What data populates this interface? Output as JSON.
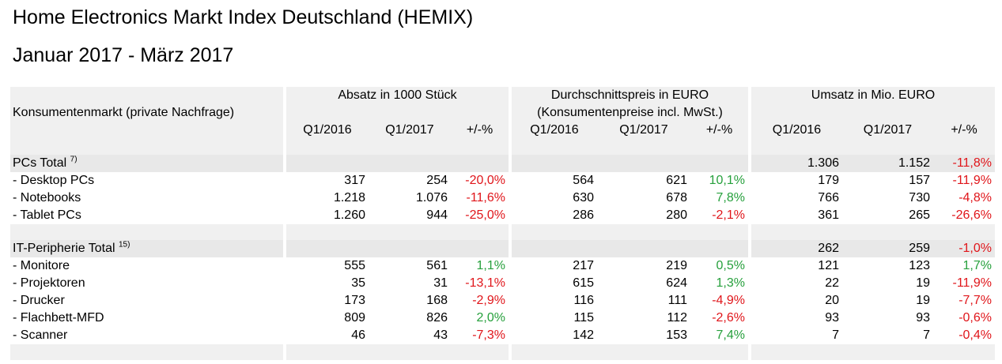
{
  "title": "Home Electronics Markt Index Deutschland (HEMIX)",
  "subtitle": "Januar 2017 - März 2017",
  "header": {
    "group1": "Absatz in 1000 Stück",
    "group2": "Durchschnittspreis in EURO",
    "group2_sub": "(Konsumentenpreise incl. MwSt.)",
    "group3": "Umsatz in Mio. EURO",
    "row_label": "Konsumentenmarkt (private Nachfrage)",
    "col_q1_2016": "Q1/2016",
    "col_q1_2017": "Q1/2017",
    "col_pct": "+/-%"
  },
  "sections": [
    {
      "total": {
        "label": "PCs Total",
        "note": "7)",
        "u16": "1.306",
        "u17": "1.152",
        "upct": "-11,8%",
        "upct_dir": "neg"
      },
      "rows": [
        {
          "label": "- Desktop PCs",
          "a16": "317",
          "a17": "254",
          "apct": "-20,0%",
          "adir": "neg",
          "p16": "564",
          "p17": "621",
          "ppct": "10,1%",
          "pdir": "pos",
          "u16": "179",
          "u17": "157",
          "upct": "-11,9%",
          "udir": "neg"
        },
        {
          "label": "- Notebooks",
          "a16": "1.218",
          "a17": "1.076",
          "apct": "-11,6%",
          "adir": "neg",
          "p16": "630",
          "p17": "678",
          "ppct": "7,8%",
          "pdir": "pos",
          "u16": "766",
          "u17": "730",
          "upct": "-4,8%",
          "udir": "neg"
        },
        {
          "label": "- Tablet PCs",
          "a16": "1.260",
          "a17": "944",
          "apct": "-25,0%",
          "adir": "neg",
          "p16": "286",
          "p17": "280",
          "ppct": "-2,1%",
          "pdir": "neg",
          "u16": "361",
          "u17": "265",
          "upct": "-26,6%",
          "udir": "neg"
        }
      ]
    },
    {
      "total": {
        "label": "IT-Peripherie Total",
        "note": "15)",
        "u16": "262",
        "u17": "259",
        "upct": "-1,0%",
        "upct_dir": "neg"
      },
      "rows": [
        {
          "label": "- Monitore",
          "a16": "555",
          "a17": "561",
          "apct": "1,1%",
          "adir": "pos",
          "p16": "217",
          "p17": "219",
          "ppct": "0,5%",
          "pdir": "pos",
          "u16": "121",
          "u17": "123",
          "upct": "1,7%",
          "udir": "pos"
        },
        {
          "label": "- Projektoren",
          "a16": "35",
          "a17": "31",
          "apct": "-13,1%",
          "adir": "neg",
          "p16": "615",
          "p17": "624",
          "ppct": "1,3%",
          "pdir": "pos",
          "u16": "22",
          "u17": "19",
          "upct": "-11,9%",
          "udir": "neg"
        },
        {
          "label": "- Drucker",
          "a16": "173",
          "a17": "168",
          "apct": "-2,9%",
          "adir": "neg",
          "p16": "116",
          "p17": "111",
          "ppct": "-4,9%",
          "pdir": "neg",
          "u16": "20",
          "u17": "19",
          "upct": "-7,7%",
          "udir": "neg"
        },
        {
          "label": "- Flachbett-MFD",
          "a16": "809",
          "a17": "826",
          "apct": "2,0%",
          "adir": "pos",
          "p16": "115",
          "p17": "112",
          "ppct": "-2,6%",
          "pdir": "neg",
          "u16": "93",
          "u17": "93",
          "upct": "-0,6%",
          "udir": "neg"
        },
        {
          "label": "- Scanner",
          "a16": "46",
          "a17": "43",
          "apct": "-7,3%",
          "adir": "neg",
          "p16": "142",
          "p17": "153",
          "ppct": "7,4%",
          "pdir": "pos",
          "u16": "7",
          "u17": "7",
          "upct": "-0,4%",
          "udir": "neg"
        }
      ]
    }
  ],
  "colors": {
    "negative": "#e0151a",
    "positive": "#26a03c",
    "shade": "#e8e8e8"
  }
}
